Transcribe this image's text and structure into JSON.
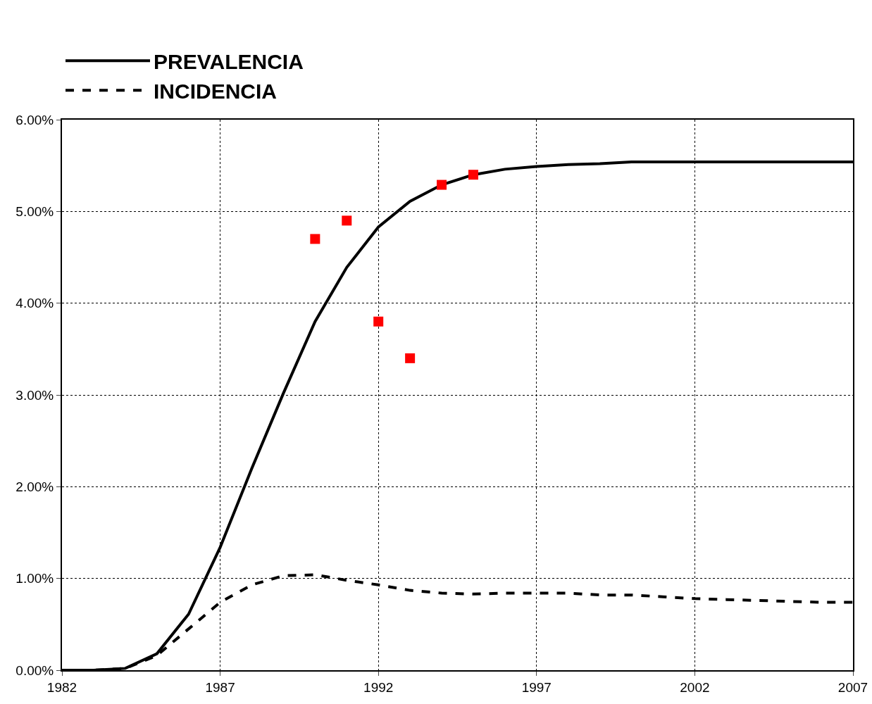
{
  "chart_data": {
    "type": "line",
    "x": [
      1982,
      1983,
      1984,
      1985,
      1986,
      1987,
      1988,
      1989,
      1990,
      1991,
      1992,
      1993,
      1994,
      1995,
      1996,
      1997,
      1998,
      1999,
      2000,
      2001,
      2002,
      2003,
      2004,
      2005,
      2006,
      2007
    ],
    "series": [
      {
        "name": "PREVALENCIA",
        "color": "#000000",
        "line_style": "solid",
        "marker": "none",
        "values": [
          0,
          0,
          0.02,
          0.18,
          0.61,
          1.34,
          2.2,
          3.02,
          3.8,
          4.39,
          4.83,
          5.11,
          5.29,
          5.4,
          5.46,
          5.49,
          5.51,
          5.52,
          5.54,
          5.54,
          5.54,
          5.54,
          5.54,
          5.54,
          5.54,
          5.54
        ]
      },
      {
        "name": "INCIDENCIA",
        "color": "#000000",
        "line_style": "dashed",
        "marker": "none",
        "values": [
          0,
          0,
          0.02,
          0.16,
          0.45,
          0.74,
          0.93,
          1.03,
          1.04,
          0.98,
          0.93,
          0.87,
          0.84,
          0.83,
          0.84,
          0.84,
          0.84,
          0.82,
          0.82,
          0.8,
          0.78,
          0.77,
          0.76,
          0.75,
          0.74,
          0.74
        ]
      },
      {
        "type": "scatter",
        "color": "#ff0000",
        "marker": "square",
        "x": [
          1990,
          1991,
          1992,
          1993,
          1994,
          1995
        ],
        "values": [
          4.7,
          4.9,
          3.8,
          3.4,
          5.29,
          5.4
        ]
      }
    ],
    "xlim": [
      1982,
      2007
    ],
    "xticks": [
      1982,
      1987,
      1992,
      1997,
      2002,
      2007
    ],
    "ylim": [
      0,
      6
    ],
    "yticks": [
      {
        "value": 0,
        "label": "0.00%"
      },
      {
        "value": 1,
        "label": "1.00%"
      },
      {
        "value": 2,
        "label": "2.00%"
      },
      {
        "value": 3,
        "label": "3.00%"
      },
      {
        "value": 4,
        "label": "4.00%"
      },
      {
        "value": 5,
        "label": "5.00%"
      },
      {
        "value": 6,
        "label": "6.00%"
      }
    ],
    "grid": true,
    "legend": "top"
  }
}
